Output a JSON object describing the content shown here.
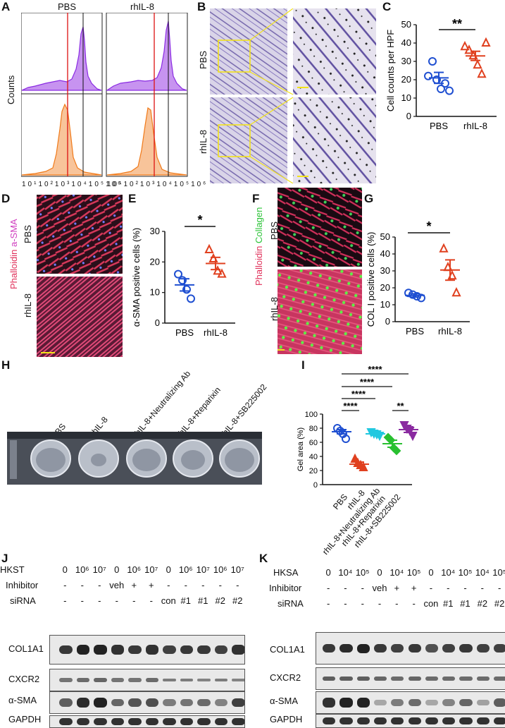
{
  "panel_letters": {
    "A": "A",
    "B": "B",
    "C": "C",
    "D": "D",
    "E": "E",
    "F": "F",
    "G": "G",
    "H": "H",
    "I": "I",
    "J": "J",
    "K": "K"
  },
  "panel_A": {
    "col_titles": [
      "PBS",
      "rhIL-8"
    ],
    "ylabel": "Counts",
    "xticks": [
      "10¹",
      "10²",
      "10³",
      "10⁴",
      "10⁵",
      "10⁶"
    ],
    "colors": {
      "top": "#9b30e8",
      "bottom": "#f59a3c",
      "redline": "#d11",
      "blackline": "#111"
    }
  },
  "panel_B": {
    "row_labels": [
      "PBS",
      "rhIL-8"
    ]
  },
  "panel_C": {
    "chart_data": {
      "type": "scatter",
      "ylabel": "Cell counts per HPF",
      "categories": [
        "PBS",
        "rhIL-8"
      ],
      "ylim": [
        0,
        50
      ],
      "yticks": [
        "0",
        "10",
        "20",
        "30",
        "40",
        "50"
      ],
      "series": [
        {
          "values": [
            22,
            30,
            20,
            15,
            18,
            14
          ],
          "mean": 21,
          "sem": 3,
          "marker": "circle",
          "color": "#1f4fd1"
        },
        {
          "values": [
            38,
            36,
            33,
            28,
            23,
            40
          ],
          "mean": 33,
          "sem": 2.5,
          "marker": "triangle",
          "color": "#e0401f"
        }
      ],
      "significance": "**"
    }
  },
  "panel_D": {
    "stain_label_1": "Phalloidin",
    "stain_label_2": "a-SMA",
    "row_labels": [
      "PBS",
      "rhIL-8"
    ]
  },
  "panel_E": {
    "chart_data": {
      "type": "scatter",
      "ylabel": "α-SMA positive cells (%)",
      "categories": [
        "PBS",
        "rhIL-8"
      ],
      "ylim": [
        0,
        30
      ],
      "yticks": [
        "0",
        "10",
        "20",
        "30"
      ],
      "series": [
        {
          "values": [
            16,
            14,
            11,
            8
          ],
          "mean": 12.5,
          "sem": 2,
          "marker": "circle",
          "color": "#1f4fd1"
        },
        {
          "values": [
            24,
            21,
            17,
            16
          ],
          "mean": 19.5,
          "sem": 2,
          "marker": "triangle",
          "color": "#e0401f"
        }
      ],
      "significance": "*"
    }
  },
  "panel_F": {
    "stain_label_1": "Phalloidin",
    "stain_label_2": "Collagen",
    "row_labels": [
      "PBS",
      "rhIL-8"
    ]
  },
  "panel_G": {
    "chart_data": {
      "type": "scatter",
      "ylabel": "COL I positive cells (%)",
      "categories": [
        "PBS",
        "rhIL-8"
      ],
      "ylim": [
        0,
        50
      ],
      "yticks": [
        "0",
        "10",
        "20",
        "30",
        "40",
        "50"
      ],
      "series": [
        {
          "values": [
            17,
            16,
            15,
            14
          ],
          "mean": 15.5,
          "sem": 1,
          "marker": "circle",
          "color": "#1f4fd1"
        },
        {
          "values": [
            43,
            32,
            27,
            17
          ],
          "mean": 30.5,
          "sem": 6,
          "marker": "triangle",
          "color": "#e0401f"
        }
      ],
      "significance": "*"
    }
  },
  "panel_H": {
    "well_labels": [
      "PBS",
      "rhIL-8",
      "rhIL-8+Neutralizing Ab",
      "rhIL-8+Reparixin",
      "rhIL-8+SB225002"
    ]
  },
  "panel_I": {
    "chart_data": {
      "type": "scatter",
      "ylabel": "Gel area (%)",
      "categories": [
        "PBS",
        "rhIL-8",
        "rhIL-8+Neutralizing Ab",
        "rhIL-8+Reparixin",
        "rhIL-8+SB225002"
      ],
      "ylim": [
        0,
        100
      ],
      "yticks": [
        "0",
        "20",
        "40",
        "60",
        "80",
        "100"
      ],
      "series": [
        {
          "values": [
            80,
            76,
            72,
            65
          ],
          "mean": 75,
          "sem": 3,
          "marker": "circle",
          "color": "#1f4fd1"
        },
        {
          "values": [
            36,
            30,
            27,
            24
          ],
          "mean": 29,
          "sem": 3,
          "marker": "triangle",
          "color": "#e0401f"
        },
        {
          "values": [
            75,
            73,
            72,
            70
          ],
          "mean": 72,
          "sem": 2,
          "marker": "triangle-down",
          "color": "#20c8e0"
        },
        {
          "values": [
            67,
            63,
            52,
            48
          ],
          "mean": 58,
          "sem": 5,
          "marker": "diamond",
          "color": "#28c030"
        },
        {
          "values": [
            85,
            80,
            77,
            70
          ],
          "mean": 78,
          "sem": 4,
          "marker": "triangle-down",
          "color": "#8a2aa0"
        }
      ],
      "significance": [
        "****",
        "****",
        "****",
        "****",
        "**"
      ]
    }
  },
  "panel_J": {
    "row_header_treat": "HKST",
    "row_header_inhib": "Inhibitor",
    "row_header_sirna": "siRNA",
    "treat": [
      "0",
      "10⁶",
      "10⁷",
      "0",
      "10⁶",
      "10⁷",
      "0",
      "10⁶",
      "10⁷",
      "10⁶",
      "10⁷"
    ],
    "inhib": [
      "-",
      "-",
      "-",
      "veh",
      "+",
      "+",
      "-",
      "-",
      "-",
      "-",
      "-"
    ],
    "sirna": [
      "-",
      "-",
      "-",
      "-",
      "-",
      "-",
      "con",
      "#1",
      "#1",
      "#2",
      "#2"
    ],
    "blots": [
      "COL1A1",
      "CXCR2",
      "α-SMA",
      "GAPDH"
    ]
  },
  "panel_K": {
    "row_header_treat": "HKSA",
    "row_header_inhib": "Inhibitor",
    "row_header_sirna": "siRNA",
    "treat": [
      "0",
      "10⁴",
      "10⁵",
      "0",
      "10⁴",
      "10⁵",
      "0",
      "10⁴",
      "10⁵",
      "10⁴",
      "10⁵"
    ],
    "inhib": [
      "-",
      "-",
      "-",
      "veh",
      "+",
      "+",
      "-",
      "-",
      "-",
      "-",
      "-"
    ],
    "sirna": [
      "-",
      "-",
      "-",
      "-",
      "-",
      "-",
      "con",
      "#1",
      "#1",
      "#2",
      "#2"
    ],
    "blots": [
      "COL1A1",
      "CXCR2",
      "α-SMA",
      "GAPDH"
    ]
  }
}
